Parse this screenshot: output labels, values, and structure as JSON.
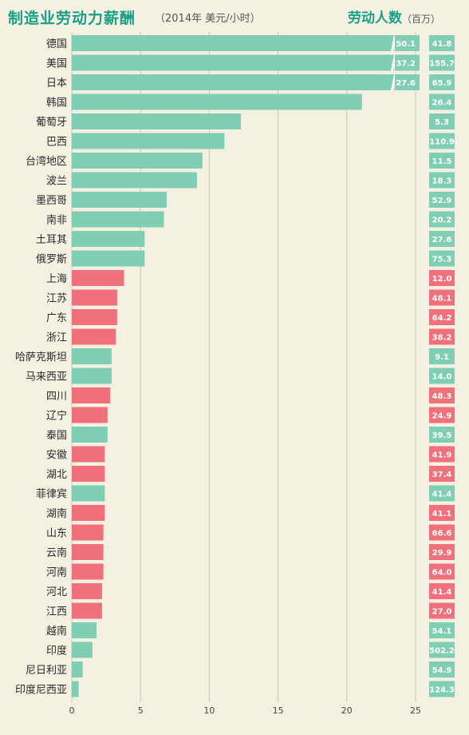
{
  "header": {
    "title": "制造业劳动力薪酬",
    "subtitle": "（2014年  美元/小时）",
    "worker_title": "劳动人数",
    "worker_unit": "（百万）"
  },
  "colors": {
    "country": "#80cfb5",
    "china_province": "#f0707c",
    "background": "#f4f1e2",
    "grid": "#c9c6b3"
  },
  "chart_data": {
    "type": "bar",
    "orientation": "horizontal",
    "title": "制造业劳动力薪酬",
    "xlabel": "",
    "ylabel": "",
    "xlim": [
      0,
      25
    ],
    "xticks": [
      0,
      5,
      10,
      15,
      20,
      25
    ],
    "grid": true,
    "categories": [
      "德国",
      "美国",
      "日本",
      "韩国",
      "葡萄牙",
      "巴西",
      "台湾地区",
      "波兰",
      "墨西哥",
      "南非",
      "土耳其",
      "俄罗斯",
      "上海",
      "江苏",
      "广东",
      "浙江",
      "哈萨克斯坦",
      "马来西亚",
      "四川",
      "辽宁",
      "泰国",
      "安徽",
      "湖北",
      "菲律宾",
      "湖南",
      "山东",
      "云南",
      "河南",
      "河北",
      "江西",
      "越南",
      "印度",
      "尼日利亚",
      "印度尼西亚"
    ],
    "values": [
      50.1,
      37.2,
      27.6,
      21.1,
      12.3,
      11.1,
      9.5,
      9.1,
      6.9,
      6.7,
      5.3,
      5.3,
      3.8,
      3.3,
      3.3,
      3.2,
      2.9,
      2.9,
      2.8,
      2.6,
      2.6,
      2.4,
      2.4,
      2.4,
      2.4,
      2.3,
      2.3,
      2.3,
      2.2,
      2.2,
      1.8,
      1.5,
      0.8,
      0.5
    ],
    "value_labels": [
      "50.1",
      "37.2",
      "27.6",
      "",
      "",
      "",
      "",
      "",
      "",
      "",
      "",
      "",
      "",
      "",
      "",
      "",
      "",
      "",
      "",
      "",
      "",
      "",
      "",
      "",
      "",
      "",
      "",
      "",
      "",
      "",
      "",
      "",
      "",
      ""
    ],
    "group": [
      "c",
      "c",
      "c",
      "c",
      "c",
      "c",
      "c",
      "c",
      "c",
      "c",
      "c",
      "c",
      "p",
      "p",
      "p",
      "p",
      "c",
      "c",
      "p",
      "p",
      "c",
      "p",
      "p",
      "c",
      "p",
      "p",
      "p",
      "p",
      "p",
      "p",
      "c",
      "c",
      "c",
      "c"
    ],
    "workers": [
      "41.8",
      "155.7",
      "65.9",
      "26.4",
      "5.3",
      "110.9",
      "11.5",
      "18.3",
      "52.9",
      "20.2",
      "27.6",
      "75.3",
      "12.0",
      "48.1",
      "64.2",
      "38.2",
      "9.1",
      "14.0",
      "48.3",
      "24.9",
      "39.5",
      "41.9",
      "37.4",
      "41.4",
      "41.1",
      "66.6",
      "29.9",
      "64.0",
      "41.4",
      "27.0",
      "54.1",
      "502.2",
      "54.9",
      "124.3"
    ]
  }
}
